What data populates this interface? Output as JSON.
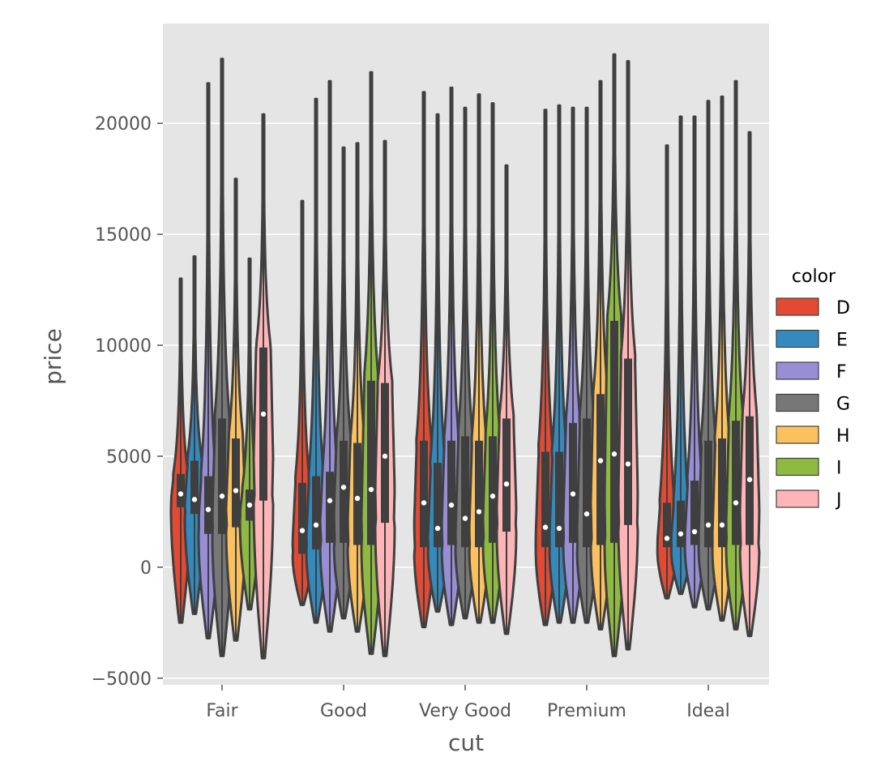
{
  "chart_data": {
    "type": "violin",
    "xlabel": "cut",
    "ylabel": "price",
    "ylim": [
      -5300,
      24500
    ],
    "yticks": [
      -5000,
      0,
      5000,
      10000,
      15000,
      20000
    ],
    "ytick_labels": [
      "−5000",
      "0",
      "5000",
      "10000",
      "15000",
      "20000"
    ],
    "categories": [
      "Fair",
      "Good",
      "Very Good",
      "Premium",
      "Ideal"
    ],
    "grid": true,
    "legend": {
      "title": "color",
      "placement": "right",
      "entries": [
        "D",
        "E",
        "F",
        "G",
        "H",
        "I",
        "J"
      ]
    },
    "colors": {
      "D": "#E24A33",
      "E": "#348ABD",
      "F": "#988ED5",
      "G": "#777777",
      "H": "#FBC15E",
      "I": "#8EBA42",
      "J": "#FFB5B8"
    },
    "panel_background": "#E5E5E5",
    "violin_outline": "#3F3F3F",
    "series": [
      {
        "name": "D",
        "values": [
          {
            "min": -2500,
            "q1": 2700,
            "median": 3300,
            "q3": 4200,
            "max": 13000
          },
          {
            "min": -1700,
            "q1": 600,
            "median": 1650,
            "q3": 3800,
            "max": 16500
          },
          {
            "min": -2700,
            "q1": 900,
            "median": 2900,
            "q3": 5700,
            "max": 21400
          },
          {
            "min": -2600,
            "q1": 900,
            "median": 1800,
            "q3": 5200,
            "max": 20600
          },
          {
            "min": -1400,
            "q1": 900,
            "median": 1300,
            "q3": 2900,
            "max": 19000
          }
        ]
      },
      {
        "name": "E",
        "values": [
          {
            "min": -2100,
            "q1": 2400,
            "median": 3050,
            "q3": 4800,
            "max": 14000
          },
          {
            "min": -2500,
            "q1": 800,
            "median": 1900,
            "q3": 4100,
            "max": 21100
          },
          {
            "min": -2000,
            "q1": 900,
            "median": 1750,
            "q3": 4700,
            "max": 20400
          },
          {
            "min": -2500,
            "q1": 900,
            "median": 1750,
            "q3": 5200,
            "max": 20800
          },
          {
            "min": -1200,
            "q1": 900,
            "median": 1500,
            "q3": 3000,
            "max": 20300
          }
        ]
      },
      {
        "name": "F",
        "values": [
          {
            "min": -3200,
            "q1": 1500,
            "median": 2600,
            "q3": 4100,
            "max": 21800
          },
          {
            "min": -2900,
            "q1": 1100,
            "median": 3000,
            "q3": 4300,
            "max": 21900
          },
          {
            "min": -2600,
            "q1": 1000,
            "median": 2800,
            "q3": 5700,
            "max": 21600
          },
          {
            "min": -2500,
            "q1": 1100,
            "median": 3300,
            "q3": 6500,
            "max": 20700
          },
          {
            "min": -1800,
            "q1": 1000,
            "median": 1600,
            "q3": 3900,
            "max": 20300
          }
        ]
      },
      {
        "name": "G",
        "values": [
          {
            "min": -4000,
            "q1": 1500,
            "median": 3200,
            "q3": 6700,
            "max": 22900
          },
          {
            "min": -2300,
            "q1": 1100,
            "median": 3600,
            "q3": 5700,
            "max": 18900
          },
          {
            "min": -2300,
            "q1": 900,
            "median": 2200,
            "q3": 5900,
            "max": 20700
          },
          {
            "min": -2500,
            "q1": 900,
            "median": 2400,
            "q3": 6700,
            "max": 20700
          },
          {
            "min": -1900,
            "q1": 900,
            "median": 1900,
            "q3": 5700,
            "max": 21000
          }
        ]
      },
      {
        "name": "H",
        "values": [
          {
            "min": -3300,
            "q1": 1800,
            "median": 3450,
            "q3": 5800,
            "max": 17500
          },
          {
            "min": -2900,
            "q1": 1000,
            "median": 3100,
            "q3": 5600,
            "max": 19100
          },
          {
            "min": -2500,
            "q1": 900,
            "median": 2500,
            "q3": 5700,
            "max": 21300
          },
          {
            "min": -2800,
            "q1": 1000,
            "median": 4800,
            "q3": 7800,
            "max": 21900
          },
          {
            "min": -2400,
            "q1": 900,
            "median": 1900,
            "q3": 5800,
            "max": 21200
          }
        ]
      },
      {
        "name": "I",
        "values": [
          {
            "min": -1900,
            "q1": 2100,
            "median": 2800,
            "q3": 3500,
            "max": 13900
          },
          {
            "min": -3900,
            "q1": 1000,
            "median": 3500,
            "q3": 8400,
            "max": 22300
          },
          {
            "min": -2500,
            "q1": 1100,
            "median": 3200,
            "q3": 5900,
            "max": 20900
          },
          {
            "min": -4000,
            "q1": 1100,
            "median": 5100,
            "q3": 11100,
            "max": 23100
          },
          {
            "min": -2800,
            "q1": 1000,
            "median": 2900,
            "q3": 6600,
            "max": 21900
          }
        ]
      },
      {
        "name": "J",
        "values": [
          {
            "min": -4100,
            "q1": 3000,
            "median": 6900,
            "q3": 9900,
            "max": 20400
          },
          {
            "min": -4000,
            "q1": 2000,
            "median": 5000,
            "q3": 8300,
            "max": 19200
          },
          {
            "min": -3000,
            "q1": 1600,
            "median": 3750,
            "q3": 6700,
            "max": 18100
          },
          {
            "min": -3700,
            "q1": 1900,
            "median": 4650,
            "q3": 9400,
            "max": 22800
          },
          {
            "min": -3100,
            "q1": 1000,
            "median": 3950,
            "q3": 6800,
            "max": 19600
          }
        ]
      }
    ]
  }
}
